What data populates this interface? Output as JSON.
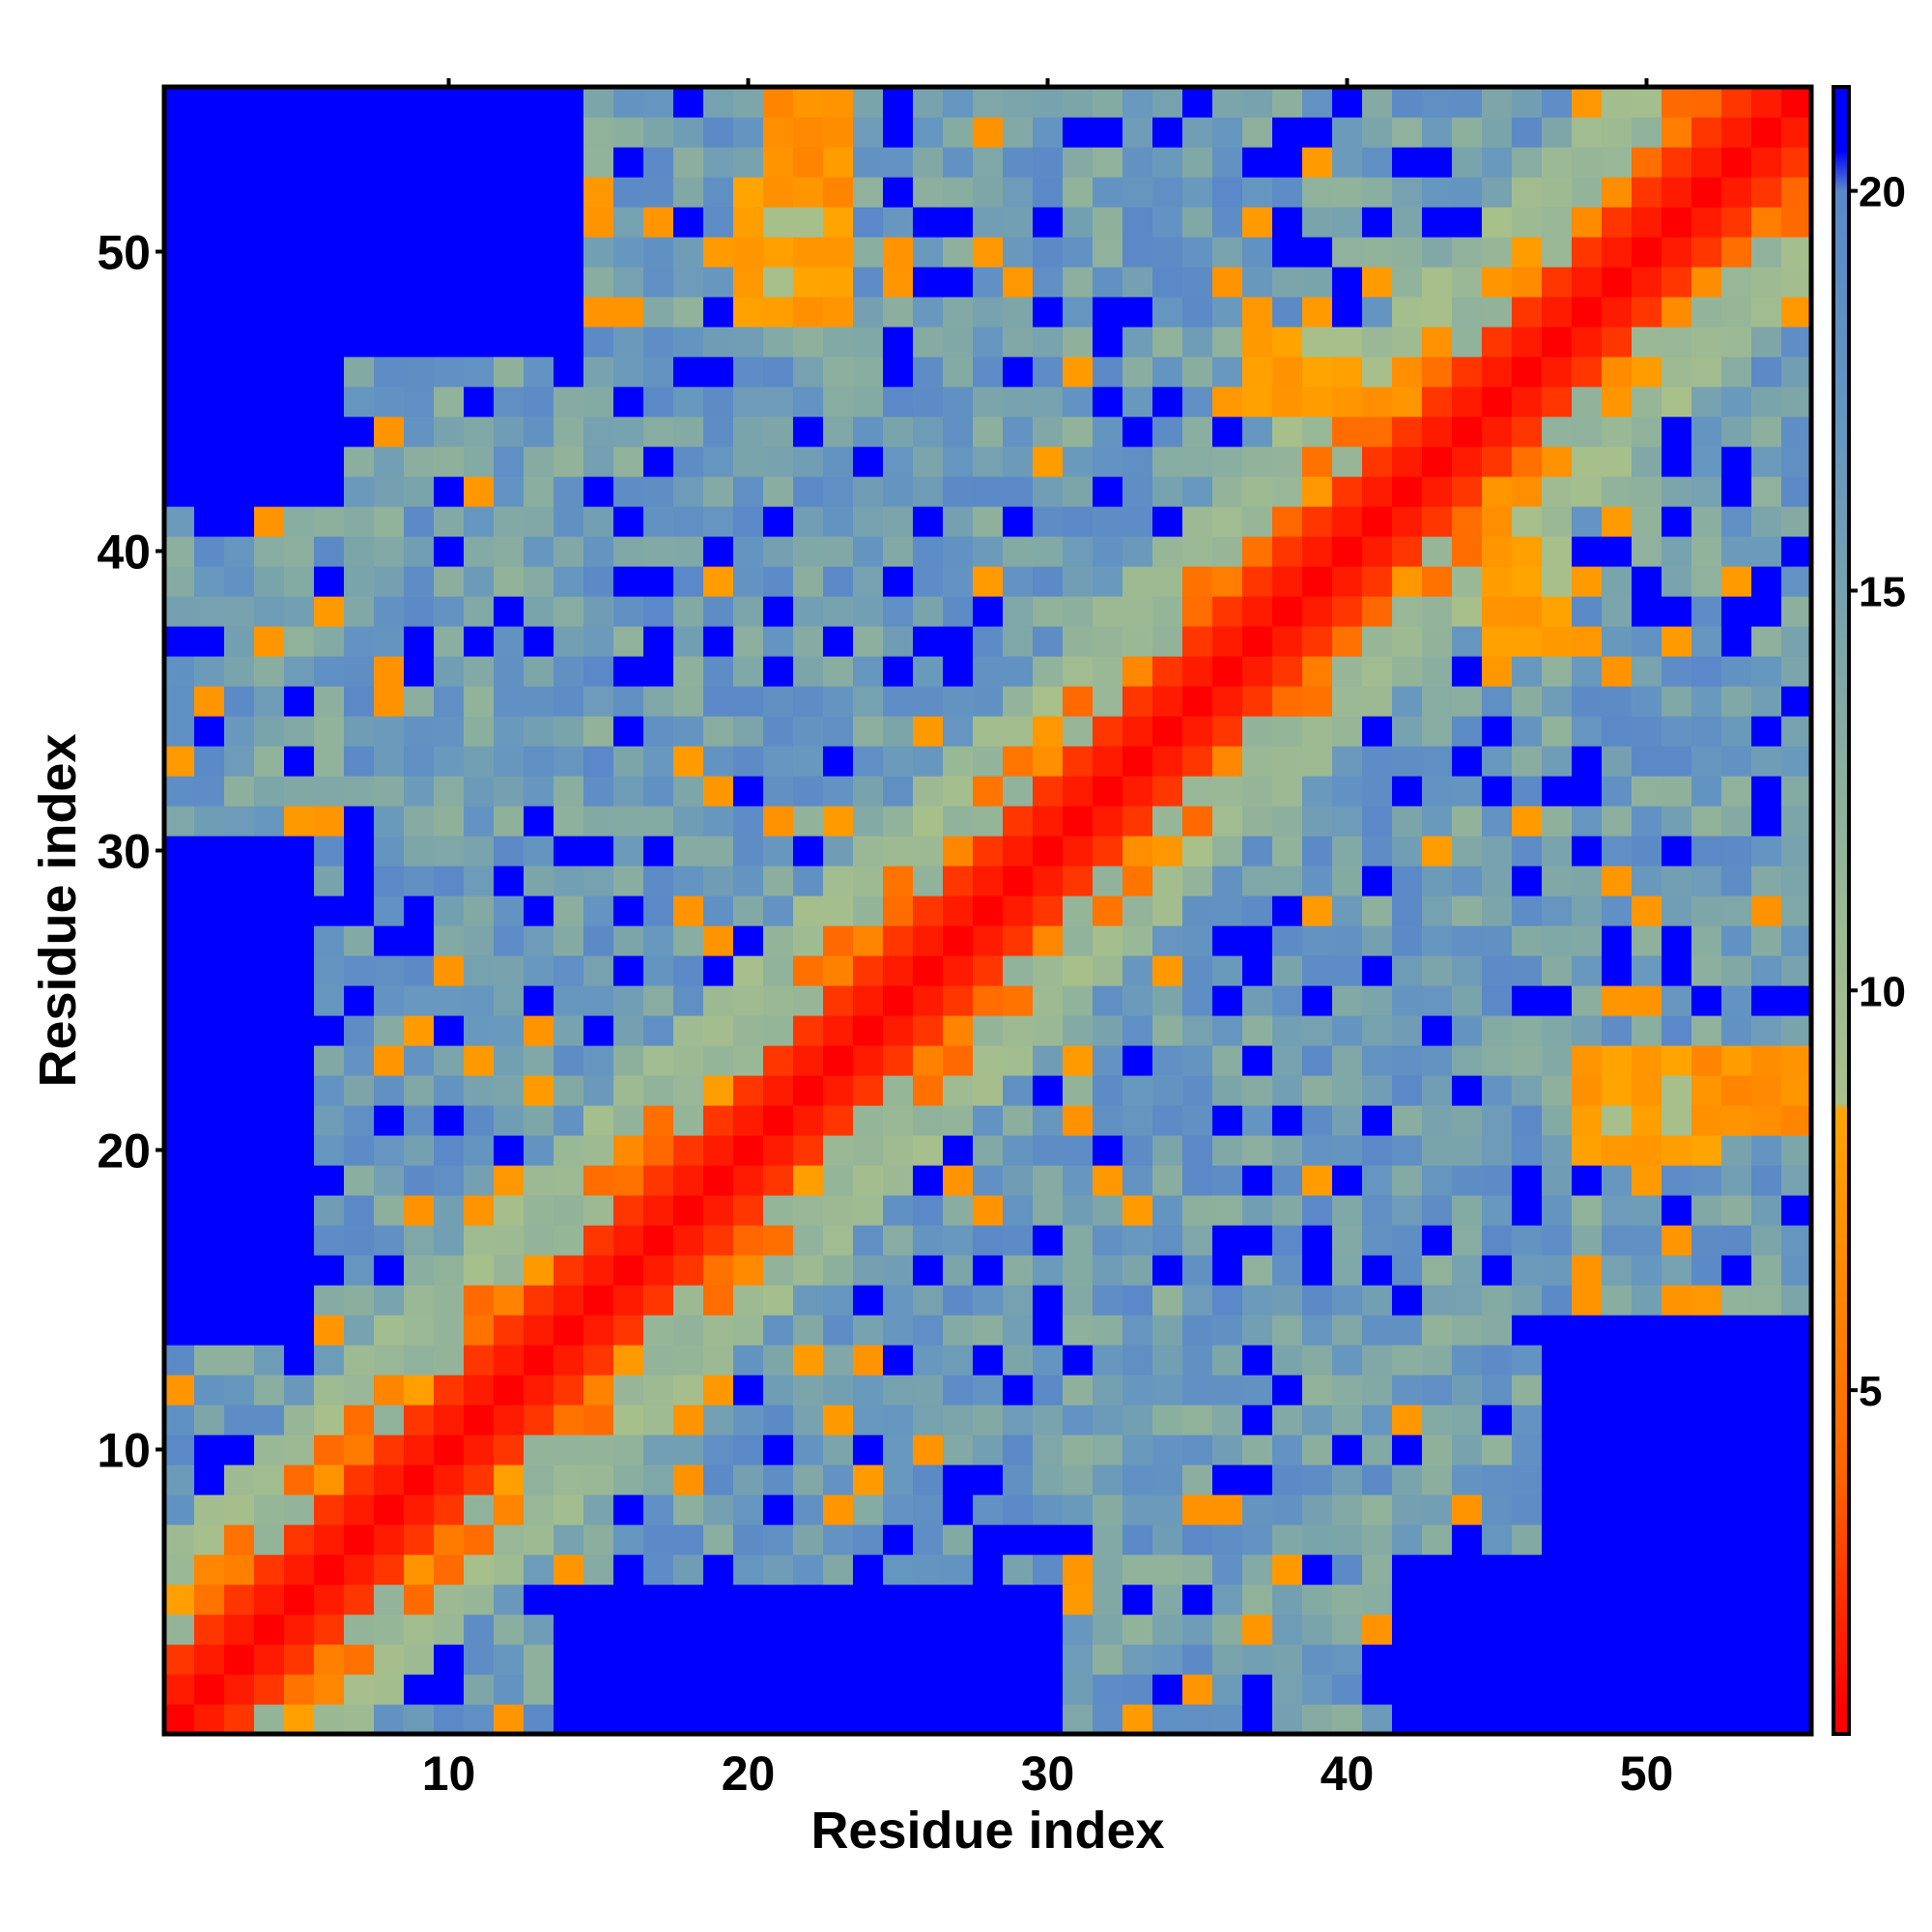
{
  "chart_data": {
    "type": "heatmap",
    "title": "",
    "xlabel": "Residue index",
    "ylabel": "Residue index",
    "n_residues": 55,
    "xlim": [
      1,
      55
    ],
    "ylim": [
      1,
      55
    ],
    "x_ticks": [
      10,
      20,
      30,
      40,
      50
    ],
    "y_ticks": [
      10,
      20,
      30,
      40,
      50
    ],
    "colorbar": {
      "range": [
        0.7,
        21.3
      ],
      "ticks": [
        5,
        10,
        15,
        20
      ],
      "placement": "right",
      "stops": [
        {
          "value": 1.0,
          "color": "#ff0000"
        },
        {
          "value": 4.0,
          "color": "#ff6600"
        },
        {
          "value": 8.5,
          "color": "#ffa500"
        },
        {
          "value": 8.6,
          "color": "#a8c08a"
        },
        {
          "value": 11.0,
          "color": "#9ab895"
        },
        {
          "value": 14.0,
          "color": "#7fa7a7"
        },
        {
          "value": 17.0,
          "color": "#6596c0"
        },
        {
          "value": 20.0,
          "color": "#5a88c8"
        },
        {
          "value": 20.5,
          "color": "#0000ff"
        },
        {
          "value": 21.3,
          "color": "#0000ff"
        }
      ]
    },
    "value_description": "Pairwise residue distance; diagonal band of low values (red/orange), far pairs high (blue)",
    "matrix_model": {
      "diagonal_band_halfwidth": 2,
      "near_band_halfwidth": 6,
      "max_value": 21,
      "contact_patches": [
        {
          "i": [
            21,
            23
          ],
          "j": [
            52,
            55
          ],
          "value": 6
        },
        {
          "i": [
            52,
            55
          ],
          "j": [
            21,
            23
          ],
          "value": 6
        },
        {
          "i": [
            48,
            52
          ],
          "j": [
            20,
            23
          ],
          "value": 7
        },
        {
          "i": [
            20,
            23
          ],
          "j": [
            48,
            52
          ],
          "value": 7
        },
        {
          "i": [
            37,
            40
          ],
          "j": [
            45,
            47
          ],
          "value": 7
        },
        {
          "i": [
            45,
            47
          ],
          "j": [
            37,
            40
          ],
          "value": 7
        }
      ],
      "far_blue_blocks": [
        {
          "i": [
            1,
            6
          ],
          "j": [
            42,
            55
          ]
        },
        {
          "i": [
            42,
            55
          ],
          "j": [
            1,
            6
          ]
        },
        {
          "i": [
            1,
            14
          ],
          "j": [
            47,
            55
          ]
        },
        {
          "i": [
            47,
            55
          ],
          "j": [
            1,
            14
          ]
        },
        {
          "i": [
            14,
            30
          ],
          "j": [
            1,
            5
          ]
        },
        {
          "i": [
            1,
            5
          ],
          "j": [
            14,
            30
          ]
        }
      ]
    }
  }
}
